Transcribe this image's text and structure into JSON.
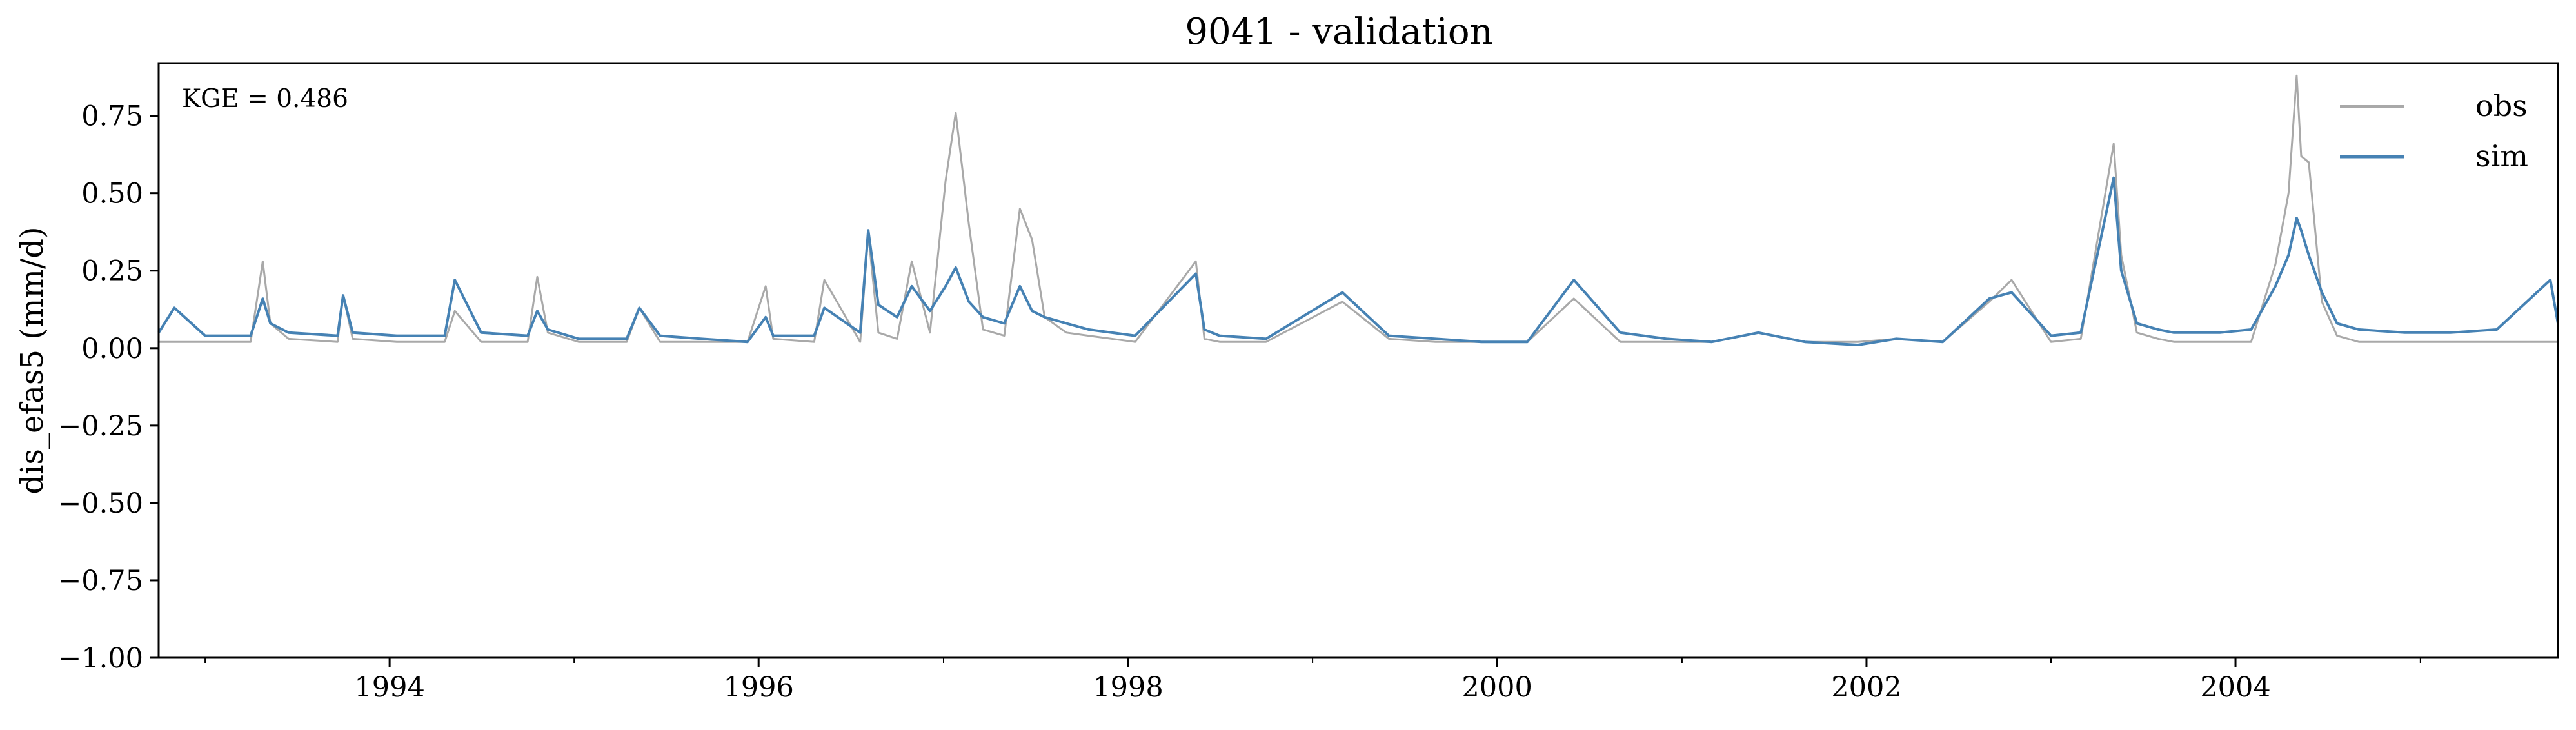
{
  "chart_data": {
    "type": "line",
    "title": "9041 - validation",
    "xlabel": "",
    "ylabel": "dis_efas5 (mm/d)",
    "annotation": "KGE = 0.486",
    "xlim": [
      "1992-10-01",
      "2005-09-30"
    ],
    "ylim": [
      -1.0,
      0.92
    ],
    "yticks": [
      -1.0,
      -0.75,
      -0.5,
      -0.25,
      0.0,
      0.25,
      0.5,
      0.75
    ],
    "ytick_labels": [
      "−1.00",
      "−0.75",
      "−0.50",
      "−0.25",
      "0.00",
      "0.25",
      "0.50",
      "0.75"
    ],
    "xticks_major": [
      "1994-01-01",
      "1996-01-01",
      "1998-01-01",
      "2000-01-01",
      "2002-01-01",
      "2004-01-01"
    ],
    "xtick_labels": [
      "1994",
      "1996",
      "1998",
      "2000",
      "2002",
      "2004"
    ],
    "xticks_minor": [
      "1993-01-01",
      "1995-01-01",
      "1997-01-01",
      "1999-01-01",
      "2001-01-01",
      "2003-01-01",
      "2005-01-01"
    ],
    "grid": false,
    "legend_position": "top-right",
    "series": [
      {
        "name": "obs",
        "color": "#a9a9a9",
        "x": [
          "1992-10-01",
          "1993-01-01",
          "1993-04-01",
          "1993-04-25",
          "1993-05-10",
          "1993-06-15",
          "1993-09-20",
          "1993-10-01",
          "1993-10-20",
          "1994-01-15",
          "1994-04-20",
          "1994-05-10",
          "1994-07-01",
          "1994-10-01",
          "1994-10-20",
          "1994-11-10",
          "1995-01-10",
          "1995-04-15",
          "1995-05-10",
          "1995-06-20",
          "1995-09-10",
          "1995-12-10",
          "1996-01-15",
          "1996-01-30",
          "1996-04-20",
          "1996-05-10",
          "1996-07-20",
          "1996-08-05",
          "1996-08-25",
          "1996-10-01",
          "1996-10-30",
          "1996-12-05",
          "1997-01-05",
          "1997-01-25",
          "1997-02-20",
          "1997-03-20",
          "1997-05-01",
          "1997-06-01",
          "1997-06-25",
          "1997-07-20",
          "1997-09-01",
          "1997-10-15",
          "1998-01-15",
          "1998-05-15",
          "1998-06-01",
          "1998-07-01",
          "1998-10-01",
          "1999-03-01",
          "1999-06-01",
          "1999-09-01",
          "1999-12-01",
          "2000-03-01",
          "2000-06-01",
          "2000-09-01",
          "2000-12-01",
          "2001-03-01",
          "2001-06-01",
          "2001-09-01",
          "2001-12-15",
          "2002-03-01",
          "2002-06-01",
          "2002-09-01",
          "2002-10-15",
          "2003-01-01",
          "2003-03-01",
          "2003-05-05",
          "2003-05-20",
          "2003-06-20",
          "2003-08-01",
          "2003-09-01",
          "2003-12-01",
          "2004-02-01",
          "2004-03-20",
          "2004-04-15",
          "2004-05-01",
          "2004-05-10",
          "2004-05-25",
          "2004-06-20",
          "2004-07-20",
          "2004-09-01",
          "2004-12-01",
          "2005-03-01",
          "2005-06-01",
          "2005-09-30"
        ],
        "values": [
          0.02,
          0.02,
          0.02,
          0.28,
          0.08,
          0.03,
          0.02,
          0.17,
          0.03,
          0.02,
          0.02,
          0.12,
          0.02,
          0.02,
          0.23,
          0.05,
          0.02,
          0.02,
          0.13,
          0.02,
          0.02,
          0.02,
          0.2,
          0.03,
          0.02,
          0.22,
          0.02,
          0.37,
          0.05,
          0.03,
          0.28,
          0.05,
          0.54,
          0.76,
          0.4,
          0.06,
          0.04,
          0.45,
          0.35,
          0.1,
          0.05,
          0.04,
          0.02,
          0.28,
          0.03,
          0.02,
          0.02,
          0.15,
          0.03,
          0.02,
          0.02,
          0.02,
          0.16,
          0.02,
          0.02,
          0.02,
          0.05,
          0.02,
          0.02,
          0.03,
          0.02,
          0.15,
          0.22,
          0.02,
          0.03,
          0.66,
          0.3,
          0.05,
          0.03,
          0.02,
          0.02,
          0.02,
          0.27,
          0.5,
          0.88,
          0.62,
          0.6,
          0.15,
          0.04,
          0.02,
          0.02,
          0.02,
          0.02,
          0.02
        ]
      },
      {
        "name": "sim",
        "color": "#4682b4",
        "x": [
          "1992-10-01",
          "1992-11-01",
          "1993-01-01",
          "1993-04-01",
          "1993-04-25",
          "1993-05-10",
          "1993-06-15",
          "1993-09-20",
          "1993-10-01",
          "1993-10-20",
          "1994-01-15",
          "1994-04-20",
          "1994-05-10",
          "1994-07-01",
          "1994-10-01",
          "1994-10-20",
          "1994-11-10",
          "1995-01-10",
          "1995-04-15",
          "1995-05-10",
          "1995-06-20",
          "1995-09-10",
          "1995-12-10",
          "1996-01-15",
          "1996-01-30",
          "1996-04-20",
          "1996-05-10",
          "1996-07-20",
          "1996-08-05",
          "1996-08-25",
          "1996-10-01",
          "1996-10-30",
          "1996-12-05",
          "1997-01-05",
          "1997-01-25",
          "1997-02-20",
          "1997-03-20",
          "1997-05-01",
          "1997-06-01",
          "1997-06-25",
          "1997-07-20",
          "1997-09-01",
          "1997-10-15",
          "1998-01-15",
          "1998-05-15",
          "1998-06-01",
          "1998-07-01",
          "1998-10-01",
          "1999-03-01",
          "1999-06-01",
          "1999-09-01",
          "1999-12-01",
          "2000-03-01",
          "2000-06-01",
          "2000-09-01",
          "2000-12-01",
          "2001-03-01",
          "2001-06-01",
          "2001-09-01",
          "2001-12-15",
          "2002-03-01",
          "2002-06-01",
          "2002-09-01",
          "2002-10-15",
          "2003-01-01",
          "2003-03-01",
          "2003-05-05",
          "2003-05-20",
          "2003-06-20",
          "2003-08-01",
          "2003-09-01",
          "2003-12-01",
          "2004-02-01",
          "2004-03-20",
          "2004-04-15",
          "2004-05-01",
          "2004-05-10",
          "2004-05-25",
          "2004-06-20",
          "2004-07-20",
          "2004-09-01",
          "2004-12-01",
          "2005-03-01",
          "2005-06-01",
          "2005-09-15",
          "2005-09-30"
        ],
        "values": [
          0.05,
          0.13,
          0.04,
          0.04,
          0.16,
          0.08,
          0.05,
          0.04,
          0.17,
          0.05,
          0.04,
          0.04,
          0.22,
          0.05,
          0.04,
          0.12,
          0.06,
          0.03,
          0.03,
          0.13,
          0.04,
          0.03,
          0.02,
          0.1,
          0.04,
          0.04,
          0.13,
          0.05,
          0.38,
          0.14,
          0.1,
          0.2,
          0.12,
          0.2,
          0.26,
          0.15,
          0.1,
          0.08,
          0.2,
          0.12,
          0.1,
          0.08,
          0.06,
          0.04,
          0.24,
          0.06,
          0.04,
          0.03,
          0.18,
          0.04,
          0.03,
          0.02,
          0.02,
          0.22,
          0.05,
          0.03,
          0.02,
          0.05,
          0.02,
          0.01,
          0.03,
          0.02,
          0.16,
          0.18,
          0.04,
          0.05,
          0.55,
          0.25,
          0.08,
          0.06,
          0.05,
          0.05,
          0.06,
          0.2,
          0.3,
          0.42,
          0.38,
          0.3,
          0.18,
          0.08,
          0.06,
          0.05,
          0.05,
          0.06,
          0.22,
          0.08
        ]
      }
    ]
  }
}
